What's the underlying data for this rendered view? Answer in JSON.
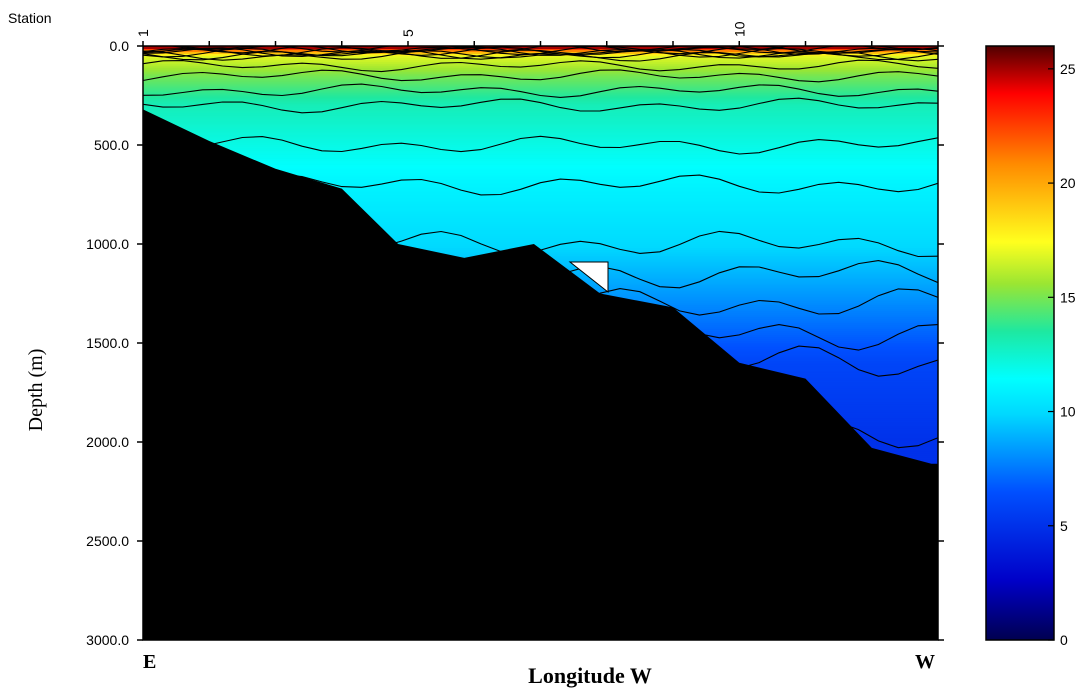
{
  "chart_data": {
    "type": "heatmap",
    "title": "",
    "station_label": "Station",
    "station_ticks": [
      {
        "station": 1,
        "label": "1"
      },
      {
        "station": 5,
        "label": "5"
      },
      {
        "station": 10,
        "label": "10"
      }
    ],
    "station_count": 13,
    "ylabel": "Depth (m)",
    "xlabel": "Longitude W",
    "x_end_labels": {
      "left": "E",
      "right": "W"
    },
    "ylim": [
      0,
      3000
    ],
    "y_ticks": [
      {
        "value": 0,
        "label": "0.0"
      },
      {
        "value": 500,
        "label": "500.0"
      },
      {
        "value": 1000,
        "label": "1000.0"
      },
      {
        "value": 1500,
        "label": "1500.0"
      },
      {
        "value": 2000,
        "label": "2000.0"
      },
      {
        "value": 2500,
        "label": "2500.0"
      },
      {
        "value": 3000,
        "label": "3000.0"
      }
    ],
    "colorbar": {
      "range": [
        0,
        26
      ],
      "ticks": [
        {
          "value": 0,
          "label": "0"
        },
        {
          "value": 5,
          "label": "5"
        },
        {
          "value": 10,
          "label": "10"
        },
        {
          "value": 15,
          "label": "15"
        },
        {
          "value": 20,
          "label": "20"
        },
        {
          "value": 25,
          "label": "25"
        }
      ],
      "colors": [
        "#000050",
        "#0000c8",
        "#0050ff",
        "#00d8ff",
        "#00ffff",
        "#1ee8a0",
        "#9be632",
        "#ffff1e",
        "#ff8c00",
        "#ff0000",
        "#500000"
      ]
    },
    "bottom_depth_profile": [
      {
        "station": 1.0,
        "depth": 320
      },
      {
        "station": 2.0,
        "depth": 480
      },
      {
        "station": 3.0,
        "depth": 620
      },
      {
        "station": 4.0,
        "depth": 720
      },
      {
        "station": 4.85,
        "depth": 1000
      },
      {
        "station": 5.85,
        "depth": 1070
      },
      {
        "station": 6.9,
        "depth": 1000
      },
      {
        "station": 7.9,
        "depth": 1250
      },
      {
        "station": 9.0,
        "depth": 1320
      },
      {
        "station": 10.0,
        "depth": 1600
      },
      {
        "station": 11.0,
        "depth": 1680
      },
      {
        "station": 12.0,
        "depth": 2030
      },
      {
        "station": 12.9,
        "depth": 2110
      }
    ],
    "temperature_profile_summary": [
      {
        "depth": 0,
        "value": 25
      },
      {
        "depth": 50,
        "value": 17
      },
      {
        "depth": 150,
        "value": 15
      },
      {
        "depth": 300,
        "value": 13
      },
      {
        "depth": 500,
        "value": 12
      },
      {
        "depth": 700,
        "value": 11
      },
      {
        "depth": 1000,
        "value": 10
      },
      {
        "depth": 1300,
        "value": 8
      },
      {
        "depth": 1600,
        "value": 6
      },
      {
        "depth": 2000,
        "value": 5
      }
    ]
  }
}
